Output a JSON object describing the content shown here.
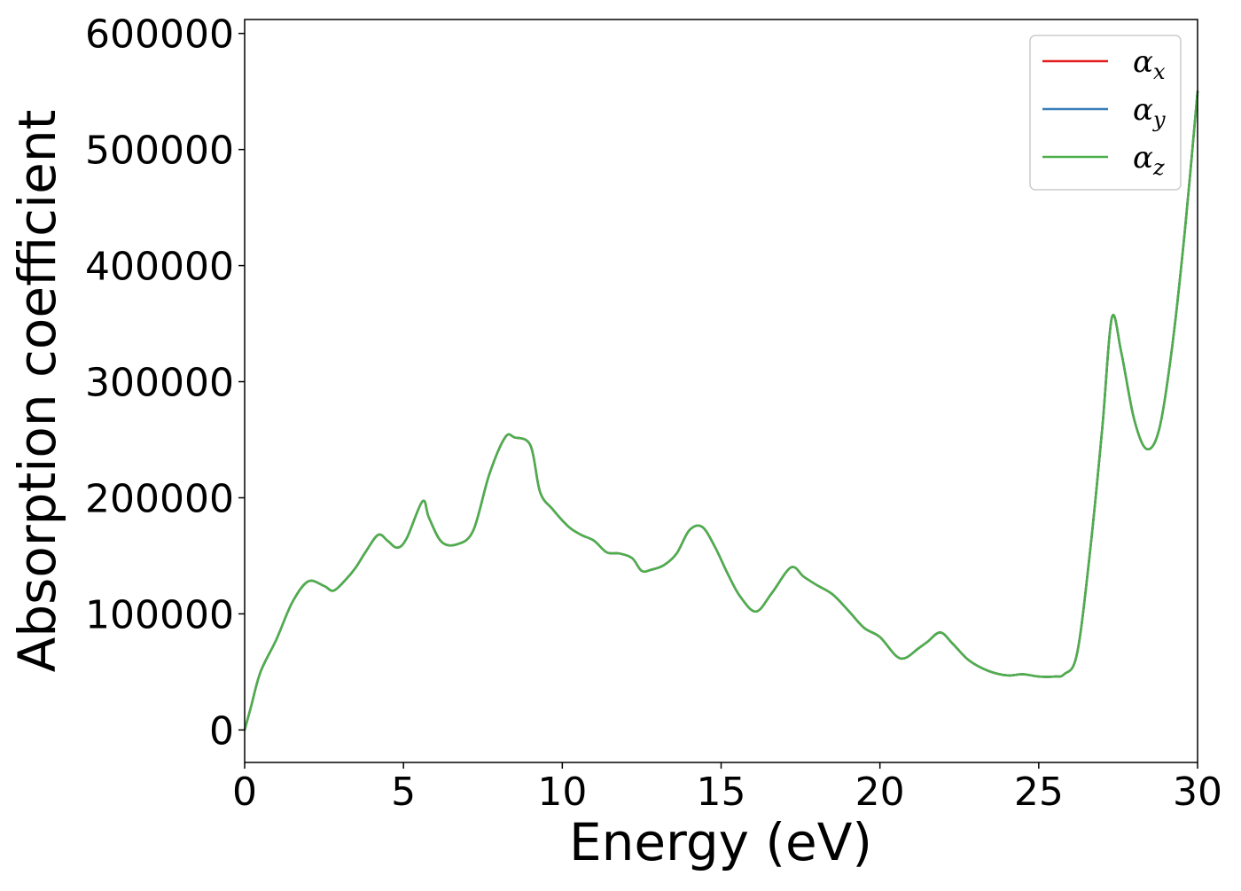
{
  "chart_data": {
    "type": "line",
    "title": "",
    "xlabel": "Energy (eV)",
    "ylabel": "Absorption coefficient",
    "xlim": [
      0,
      30
    ],
    "ylim": [
      -28000,
      612000
    ],
    "xticks": [
      0,
      5,
      10,
      15,
      20,
      25,
      30
    ],
    "xtick_labels": [
      "0",
      "5",
      "10",
      "15",
      "20",
      "25",
      "30"
    ],
    "yticks": [
      0,
      100000,
      200000,
      300000,
      400000,
      500000,
      600000
    ],
    "ytick_labels": [
      "0",
      "100000",
      "200000",
      "300000",
      "400000",
      "500000",
      "600000"
    ],
    "grid": false,
    "legend": {
      "placement": "top-right",
      "entries": [
        {
          "label": "α",
          "subscript": "x",
          "color": "#e41a1c"
        },
        {
          "label": "α",
          "subscript": "y",
          "color": "#377eb8"
        },
        {
          "label": "α",
          "subscript": "z",
          "color": "#4daf4a"
        }
      ]
    },
    "x": [
      0,
      0.2,
      0.5,
      1.0,
      1.5,
      2.0,
      2.5,
      2.8,
      3.2,
      3.5,
      3.8,
      4.2,
      4.5,
      4.8,
      5.1,
      5.6,
      5.8,
      6.2,
      6.7,
      7.2,
      7.7,
      8.2,
      8.5,
      9.0,
      9.3,
      9.7,
      10.2,
      10.6,
      11.0,
      11.4,
      11.8,
      12.2,
      12.5,
      12.8,
      13.2,
      13.6,
      14.0,
      14.4,
      14.8,
      15.2,
      15.6,
      16.1,
      16.6,
      17.2,
      17.6,
      18.0,
      18.5,
      19.0,
      19.5,
      20.0,
      20.5,
      20.8,
      21.2,
      21.5,
      21.9,
      22.3,
      22.8,
      23.4,
      24.0,
      24.5,
      25.0,
      25.5,
      25.8,
      26.2,
      26.6,
      27.0,
      27.3,
      27.6,
      28.0,
      28.4,
      28.8,
      29.2,
      29.6,
      30.0
    ],
    "series": [
      {
        "name": "α_x",
        "color": "#e41a1c",
        "values": [
          0,
          20000,
          50000,
          78000,
          110000,
          128000,
          124000,
          120000,
          130000,
          140000,
          153000,
          168000,
          163000,
          157000,
          165000,
          197000,
          183000,
          162000,
          160000,
          172000,
          220000,
          252000,
          252000,
          245000,
          205000,
          190000,
          175000,
          168000,
          163000,
          153000,
          152000,
          148000,
          137000,
          138000,
          142000,
          152000,
          172000,
          175000,
          158000,
          135000,
          115000,
          102000,
          118000,
          140000,
          132000,
          125000,
          117000,
          103000,
          88000,
          80000,
          64000,
          62000,
          70000,
          76000,
          84000,
          74000,
          60000,
          51000,
          47000,
          48000,
          46000,
          46000,
          48000,
          65000,
          150000,
          260000,
          355000,
          325000,
          268000,
          242000,
          260000,
          330000,
          430000,
          550000
        ]
      },
      {
        "name": "α_y",
        "color": "#377eb8",
        "values": [
          0,
          20000,
          50000,
          78000,
          110000,
          128000,
          124000,
          120000,
          130000,
          140000,
          153000,
          168000,
          163000,
          157000,
          165000,
          197000,
          183000,
          162000,
          160000,
          172000,
          220000,
          252000,
          252000,
          245000,
          205000,
          190000,
          175000,
          168000,
          163000,
          153000,
          152000,
          148000,
          137000,
          138000,
          142000,
          152000,
          172000,
          175000,
          158000,
          135000,
          115000,
          102000,
          118000,
          140000,
          132000,
          125000,
          117000,
          103000,
          88000,
          80000,
          64000,
          62000,
          70000,
          76000,
          84000,
          74000,
          60000,
          51000,
          47000,
          48000,
          46000,
          46000,
          48000,
          65000,
          150000,
          260000,
          355000,
          325000,
          268000,
          242000,
          260000,
          330000,
          430000,
          550000
        ]
      },
      {
        "name": "α_z",
        "color": "#4daf4a",
        "values": [
          0,
          20000,
          50000,
          78000,
          110000,
          128000,
          124000,
          120000,
          130000,
          140000,
          153000,
          168000,
          163000,
          157000,
          165000,
          197000,
          183000,
          162000,
          160000,
          172000,
          220000,
          252000,
          252000,
          245000,
          205000,
          190000,
          175000,
          168000,
          163000,
          153000,
          152000,
          148000,
          137000,
          138000,
          142000,
          152000,
          172000,
          175000,
          158000,
          135000,
          115000,
          102000,
          118000,
          140000,
          132000,
          125000,
          117000,
          103000,
          88000,
          80000,
          64000,
          62000,
          70000,
          76000,
          84000,
          74000,
          60000,
          51000,
          47000,
          48000,
          46000,
          46000,
          48000,
          65000,
          150000,
          260000,
          355000,
          325000,
          268000,
          242000,
          260000,
          330000,
          430000,
          550000
        ]
      }
    ]
  }
}
